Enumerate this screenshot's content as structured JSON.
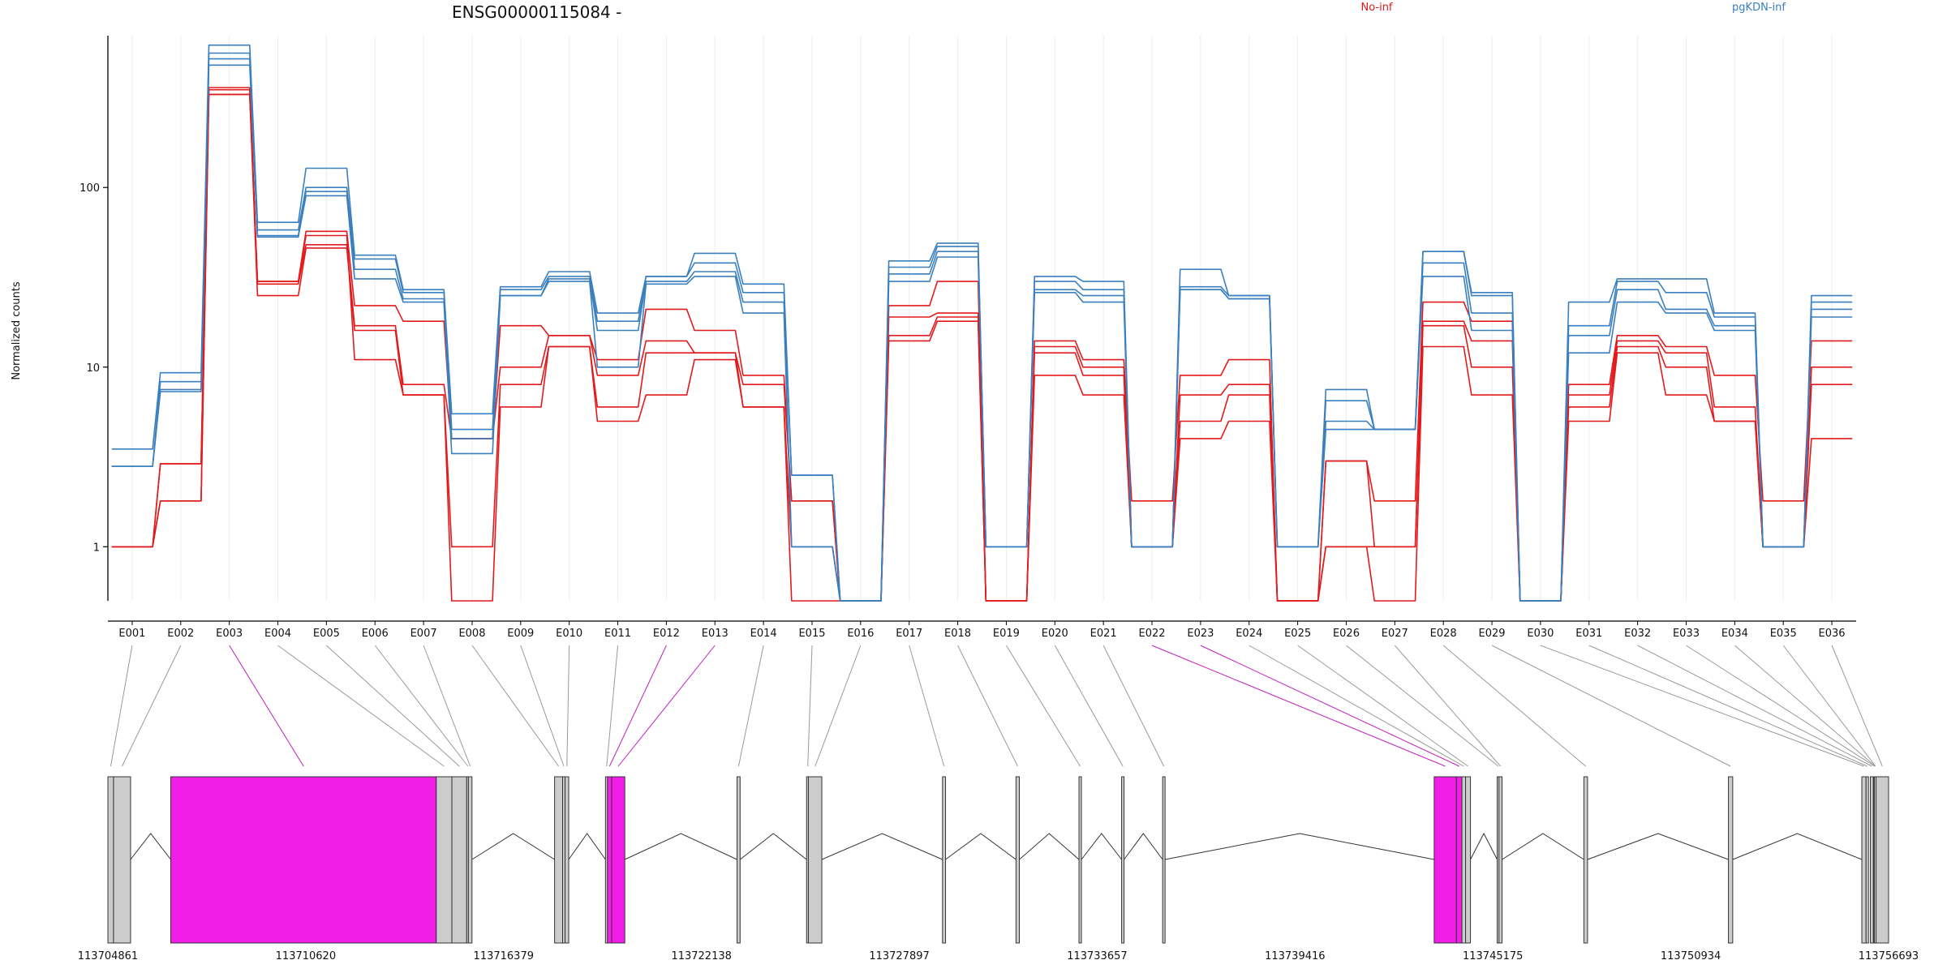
{
  "chart_data": {
    "type": "line",
    "title": "ENSG00000115084 -",
    "ylabel": "Normalized counts",
    "xlabel": "",
    "yscale": "log",
    "ylim": [
      0.5,
      700
    ],
    "yticks": [
      "1",
      "10",
      "100"
    ],
    "grid": "vertical-only",
    "legend_placement": "top",
    "categories": [
      "E001",
      "E002",
      "E003",
      "E004",
      "E005",
      "E006",
      "E007",
      "E008",
      "E009",
      "E010",
      "E011",
      "E012",
      "E013",
      "E014",
      "E015",
      "E016",
      "E017",
      "E018",
      "E019",
      "E020",
      "E021",
      "E022",
      "E023",
      "E024",
      "E025",
      "E026",
      "E027",
      "E028",
      "E029",
      "E030",
      "E031",
      "E032",
      "E033",
      "E034",
      "E035",
      "E036"
    ],
    "groups": [
      {
        "name": "No-inf",
        "color": "#e31a1c"
      },
      {
        "name": "pgKDN-inf",
        "color": "#3a7fbf"
      }
    ],
    "series": [
      {
        "group": "No-inf",
        "values": [
          1.0,
          2.9,
          350,
          30,
          57,
          22,
          18,
          4.0,
          17,
          15,
          11,
          21,
          16,
          9,
          1.8,
          0.5,
          22,
          30,
          0.5,
          14,
          11,
          1.8,
          9,
          11,
          0.5,
          3.0,
          1.8,
          23,
          18,
          0.5,
          8,
          15,
          13,
          9,
          1.8,
          14
        ]
      },
      {
        "group": "No-inf",
        "values": [
          1.0,
          2.9,
          360,
          29,
          48,
          17,
          8,
          4.0,
          10,
          15,
          9,
          14,
          12,
          8,
          1.8,
          0.5,
          19,
          20,
          0.5,
          13,
          10,
          1.0,
          7,
          8,
          0.5,
          3.0,
          1.0,
          18,
          14,
          0.5,
          7,
          14,
          12,
          6,
          1.0,
          10
        ]
      },
      {
        "group": "No-inf",
        "values": [
          1.0,
          1.8,
          330,
          25,
          46,
          16,
          7,
          1.0,
          8,
          13,
          6,
          12,
          12,
          6,
          1.0,
          0.5,
          15,
          19,
          0.5,
          12,
          9,
          1.0,
          5,
          7,
          0.5,
          1.0,
          1.0,
          17,
          10,
          0.5,
          6,
          13,
          10,
          5,
          1.0,
          8
        ]
      },
      {
        "group": "No-inf",
        "values": [
          1.0,
          1.8,
          330,
          30,
          54,
          11,
          7,
          0.5,
          6,
          13,
          5,
          7,
          11,
          6,
          0.5,
          0.5,
          14,
          18,
          0.5,
          9,
          7,
          1.0,
          4,
          5,
          0.5,
          1.0,
          0.5,
          13,
          7,
          0.5,
          5,
          12,
          7,
          5,
          1.0,
          4
        ]
      },
      {
        "group": "pgKDN-inf",
        "values": [
          3.5,
          9.3,
          620,
          64,
          128,
          42,
          27,
          5.5,
          28,
          34,
          20,
          32,
          43,
          29,
          2.5,
          0.5,
          39,
          49,
          1.0,
          32,
          30,
          1.0,
          35,
          25,
          1.0,
          7.5,
          4.5,
          44,
          26,
          0.5,
          23,
          31,
          31,
          20,
          1.0,
          25
        ]
      },
      {
        "group": "pgKDN-inf",
        "values": [
          2.8,
          8.3,
          560,
          58,
          100,
          40,
          26,
          4.5,
          27,
          32,
          18,
          32,
          38,
          26,
          2.5,
          0.5,
          36,
          47,
          1.0,
          30,
          27,
          1.0,
          28,
          25,
          1.0,
          6.5,
          4.5,
          44,
          25,
          0.5,
          17,
          30,
          26,
          19,
          1.0,
          23
        ]
      },
      {
        "group": "pgKDN-inf",
        "values": [
          2.8,
          7.5,
          520,
          54,
          95,
          35,
          24,
          4.0,
          25,
          31,
          16,
          30,
          34,
          23,
          1.0,
          0.5,
          33,
          44,
          1.0,
          27,
          25,
          1.0,
          27,
          24,
          1.0,
          5.0,
          4.5,
          38,
          20,
          0.5,
          15,
          27,
          21,
          17,
          1.0,
          21
        ]
      },
      {
        "group": "pgKDN-inf",
        "values": [
          2.8,
          7.3,
          480,
          53,
          90,
          31,
          23,
          3.3,
          25,
          30,
          10,
          29,
          32,
          20,
          1.0,
          0.5,
          30,
          41,
          1.0,
          26,
          23,
          1.0,
          27,
          24,
          1.0,
          4.5,
          4.5,
          32,
          16,
          0.5,
          12,
          23,
          20,
          16,
          1.0,
          19
        ]
      }
    ],
    "highlighted_exons": [
      "E003",
      "E012",
      "E013",
      "E022",
      "E023"
    ],
    "gene_model": {
      "highlight_color": "#f21ee8",
      "exon_color": "#cccccc",
      "coordinate_ticks": [
        "113704861",
        "113710620",
        "113716379",
        "113722138",
        "113727897",
        "113733657",
        "113739416",
        "113745175",
        "113750934",
        "113756693"
      ],
      "start": 113704861,
      "end": 113756693,
      "exons": [
        {
          "id": "E001",
          "start": 113704861,
          "end": 113705025
        },
        {
          "id": "E002",
          "start": 113705025,
          "end": 113705521
        },
        {
          "id": "E003",
          "start": 113706691,
          "end": 113714420
        },
        {
          "id": "E004",
          "start": 113714420,
          "end": 113714874
        },
        {
          "id": "E005",
          "start": 113714874,
          "end": 113715305
        },
        {
          "id": "E006",
          "start": 113715305,
          "end": 113715355
        },
        {
          "id": "E007",
          "start": 113715355,
          "end": 113715459
        },
        {
          "id": "E008",
          "start": 113717863,
          "end": 113718097
        },
        {
          "id": "E009",
          "start": 113718097,
          "end": 113718168
        },
        {
          "id": "E010",
          "start": 113718168,
          "end": 113718274
        },
        {
          "id": "E011",
          "start": 113719344,
          "end": 113719401
        },
        {
          "id": "E012",
          "start": 113719401,
          "end": 113719526
        },
        {
          "id": "E013",
          "start": 113719526,
          "end": 113719907
        },
        {
          "id": "E014",
          "start": 113723174,
          "end": 113723263
        },
        {
          "id": "E015",
          "start": 113725198,
          "end": 113725251
        },
        {
          "id": "E016",
          "start": 113725251,
          "end": 113725642
        },
        {
          "id": "E017",
          "start": 113729154,
          "end": 113729243
        },
        {
          "id": "E018",
          "start": 113731293,
          "end": 113731391
        },
        {
          "id": "E019",
          "start": 113733127,
          "end": 113733180
        },
        {
          "id": "E020",
          "start": 113734368,
          "end": 113734439
        },
        {
          "id": "E021",
          "start": 113735562,
          "end": 113735633
        },
        {
          "id": "E022",
          "start": 113743466,
          "end": 113744114
        },
        {
          "id": "E023",
          "start": 113744114,
          "end": 113744274
        },
        {
          "id": "E024",
          "start": 113744274,
          "end": 113744380
        },
        {
          "id": "E025",
          "start": 113744380,
          "end": 113744522
        },
        {
          "id": "E026",
          "start": 113745300,
          "end": 113745353
        },
        {
          "id": "E027",
          "start": 113745353,
          "end": 113745442
        },
        {
          "id": "E028",
          "start": 113747823,
          "end": 113747930
        },
        {
          "id": "E029",
          "start": 113752031,
          "end": 113752156
        },
        {
          "id": "E030",
          "start": 113755914,
          "end": 113756037
        },
        {
          "id": "E031",
          "start": 113756037,
          "end": 113756072
        },
        {
          "id": "E032",
          "start": 113756162,
          "end": 113756251
        },
        {
          "id": "E033",
          "start": 113756251,
          "end": 113756270
        },
        {
          "id": "E034",
          "start": 113756270,
          "end": 113756279
        },
        {
          "id": "E035",
          "start": 113756279,
          "end": 113756329
        },
        {
          "id": "E036",
          "start": 113756329,
          "end": 113756693
        }
      ]
    }
  }
}
